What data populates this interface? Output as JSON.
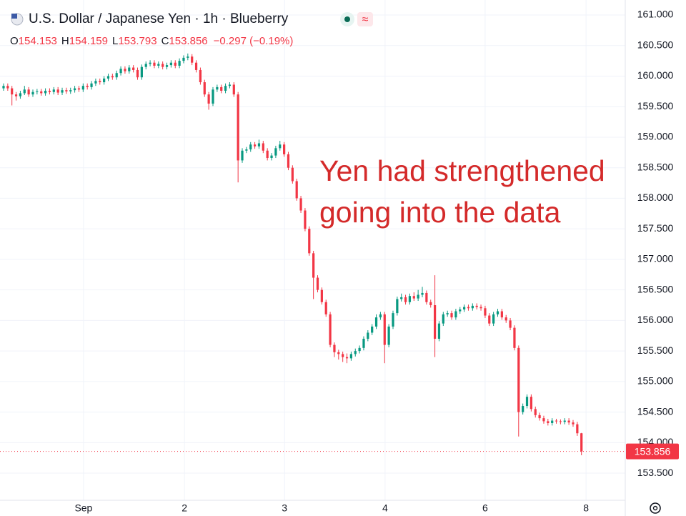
{
  "chart_data": {
    "type": "candlestick",
    "title": "U.S. Dollar / Japanese Yen · 1h · Blueberry",
    "ohlc_labels": [
      "O",
      "H",
      "L",
      "C"
    ],
    "change": "−0.297 (−0.19%)",
    "annotation": [
      "Yen had strengthened",
      "going into the data"
    ],
    "up_color": "#089981",
    "down_color": "#f23645",
    "annotation_color": "#d42a2a",
    "grid": true,
    "xlim": [
      -0.85,
      148.46
    ],
    "ylim": [
      153.056,
      161.246
    ],
    "xticks": [
      {
        "value": 19.1,
        "label": "Sep"
      },
      {
        "value": 43.2,
        "label": "2"
      },
      {
        "value": 67.1,
        "label": "3"
      },
      {
        "value": 91.1,
        "label": "4"
      },
      {
        "value": 115.0,
        "label": "6"
      },
      {
        "value": 139.1,
        "label": "8"
      }
    ],
    "yticks": [
      {
        "value": 161,
        "label": "161.000"
      },
      {
        "value": 160.5,
        "label": "160.500"
      },
      {
        "value": 160,
        "label": "160.000"
      },
      {
        "value": 159.5,
        "label": "159.500"
      },
      {
        "value": 159,
        "label": "159.000"
      },
      {
        "value": 158.5,
        "label": "158.500"
      },
      {
        "value": 158,
        "label": "158.000"
      },
      {
        "value": 157.5,
        "label": "157.500"
      },
      {
        "value": 157,
        "label": "157.000"
      },
      {
        "value": 156.5,
        "label": "156.500"
      },
      {
        "value": 156,
        "label": "156.000"
      },
      {
        "value": 155.5,
        "label": "155.500"
      },
      {
        "value": 155,
        "label": "155.000"
      },
      {
        "value": 154.5,
        "label": "154.500"
      },
      {
        "value": 154,
        "label": "154.000"
      },
      {
        "value": 153.5,
        "label": "153.500"
      }
    ],
    "x": [
      0,
      1,
      2,
      3,
      4,
      5,
      6,
      7,
      8,
      9,
      10,
      11,
      12,
      13,
      14,
      15,
      16,
      17,
      18,
      19,
      20,
      21,
      22,
      23,
      24,
      25,
      26,
      27,
      28,
      29,
      30,
      31,
      32,
      33,
      34,
      35,
      36,
      37,
      38,
      39,
      40,
      41,
      42,
      43,
      44,
      45,
      46,
      47,
      48,
      49,
      50,
      51,
      52,
      53,
      54,
      55,
      56,
      57,
      58,
      59,
      60,
      61,
      62,
      63,
      64,
      65,
      66,
      67,
      68,
      69,
      70,
      71,
      72,
      73,
      74,
      75,
      76,
      77,
      78,
      79,
      80,
      81,
      82,
      83,
      84,
      85,
      86,
      87,
      88,
      89,
      90,
      91,
      92,
      93,
      94,
      95,
      96,
      97,
      98,
      99,
      100,
      101,
      102,
      103,
      104,
      105,
      106,
      107,
      108,
      109,
      110,
      111,
      112,
      113,
      114,
      115,
      116,
      117,
      118,
      119,
      120,
      121,
      122,
      123,
      124,
      125,
      126,
      127,
      128,
      129,
      130,
      131,
      132,
      133,
      134,
      135,
      136,
      137,
      138
    ],
    "open": [
      159.8,
      159.84,
      159.8,
      159.7,
      159.67,
      159.72,
      159.78,
      159.7,
      159.74,
      159.75,
      159.72,
      159.76,
      159.74,
      159.78,
      159.73,
      159.77,
      159.75,
      159.77,
      159.8,
      159.78,
      159.84,
      159.82,
      159.88,
      159.92,
      159.9,
      159.96,
      160.0,
      159.98,
      160.05,
      160.12,
      160.08,
      160.14,
      160.1,
      159.98,
      160.15,
      160.2,
      160.22,
      160.17,
      160.2,
      160.15,
      160.18,
      160.22,
      160.17,
      160.25,
      160.3,
      160.32,
      160.22,
      160.1,
      159.9,
      159.7,
      159.55,
      159.78,
      159.82,
      159.76,
      159.84,
      159.86,
      159.7,
      158.62,
      158.78,
      158.8,
      158.88,
      158.85,
      158.9,
      158.78,
      158.66,
      158.7,
      158.82,
      158.88,
      158.72,
      158.5,
      158.28,
      158.0,
      157.8,
      157.5,
      157.1,
      156.7,
      156.5,
      156.3,
      156.1,
      155.6,
      155.48,
      155.45,
      155.4,
      155.38,
      155.45,
      155.5,
      155.55,
      155.7,
      155.8,
      155.9,
      156.05,
      156.1,
      155.6,
      155.9,
      156.12,
      156.35,
      156.38,
      156.3,
      156.4,
      156.36,
      156.42,
      156.45,
      156.3,
      156.25,
      155.7,
      155.95,
      156.1,
      156.12,
      156.05,
      156.15,
      156.18,
      156.22,
      156.2,
      156.24,
      156.22,
      156.2,
      156.08,
      155.95,
      156.1,
      156.15,
      156.05,
      156.0,
      155.88,
      155.55,
      154.5,
      154.6,
      154.75,
      154.55,
      154.45,
      154.4,
      154.35,
      154.32,
      154.36,
      154.35,
      154.34,
      154.36,
      154.33,
      154.3,
      154.153
    ],
    "high": [
      159.88,
      159.88,
      159.84,
      159.74,
      159.76,
      159.84,
      159.82,
      159.78,
      159.79,
      159.79,
      159.8,
      159.8,
      159.82,
      159.82,
      159.81,
      159.81,
      159.81,
      159.84,
      159.84,
      159.88,
      159.88,
      159.92,
      159.96,
      159.96,
      160.0,
      160.04,
      160.04,
      160.09,
      160.16,
      160.16,
      160.18,
      160.18,
      160.14,
      160.19,
      160.24,
      160.26,
      160.26,
      160.24,
      160.24,
      160.22,
      160.26,
      160.26,
      160.29,
      160.34,
      160.37,
      160.36,
      160.26,
      160.14,
      159.94,
      159.74,
      159.82,
      159.86,
      159.86,
      159.88,
      159.9,
      159.9,
      159.74,
      158.82,
      158.84,
      158.92,
      158.92,
      158.96,
      158.94,
      158.82,
      158.74,
      158.86,
      158.94,
      158.92,
      158.76,
      158.54,
      158.32,
      158.04,
      157.84,
      157.54,
      157.14,
      156.74,
      156.54,
      156.34,
      156.14,
      155.64,
      155.52,
      155.49,
      155.46,
      155.49,
      155.54,
      155.59,
      155.74,
      155.84,
      155.94,
      156.1,
      156.14,
      156.14,
      155.94,
      156.16,
      156.39,
      156.44,
      156.42,
      156.44,
      156.46,
      156.5,
      156.55,
      156.49,
      156.34,
      156.74,
      155.99,
      156.14,
      156.16,
      156.16,
      156.19,
      156.22,
      156.26,
      156.26,
      156.28,
      156.28,
      156.26,
      156.24,
      156.12,
      156.14,
      156.19,
      156.19,
      156.09,
      156.04,
      155.92,
      155.59,
      154.64,
      154.79,
      154.79,
      154.59,
      154.49,
      154.44,
      154.39,
      154.4,
      154.39,
      154.38,
      154.4,
      154.4,
      154.37,
      154.34,
      154.159
    ],
    "low": [
      159.76,
      159.76,
      159.52,
      159.6,
      159.63,
      159.69,
      159.66,
      159.66,
      159.7,
      159.68,
      159.68,
      159.7,
      159.7,
      159.69,
      159.69,
      159.71,
      159.71,
      159.73,
      159.74,
      159.74,
      159.78,
      159.78,
      159.84,
      159.86,
      159.86,
      159.92,
      159.94,
      159.94,
      160.01,
      160.04,
      160.04,
      160.06,
      159.94,
      159.94,
      160.11,
      160.16,
      160.13,
      160.13,
      160.11,
      160.11,
      160.14,
      160.13,
      160.13,
      160.21,
      160.26,
      160.18,
      160.06,
      159.86,
      159.66,
      159.45,
      159.51,
      159.74,
      159.72,
      159.72,
      159.8,
      159.66,
      158.26,
      158.58,
      158.74,
      158.76,
      158.81,
      158.81,
      158.74,
      158.62,
      158.62,
      158.66,
      158.78,
      158.68,
      158.46,
      158.24,
      157.96,
      157.76,
      157.46,
      157.06,
      156.35,
      156.46,
      156.26,
      156.06,
      155.56,
      155.4,
      155.36,
      155.32,
      155.3,
      155.34,
      155.41,
      155.46,
      155.51,
      155.66,
      155.76,
      155.86,
      156.01,
      155.3,
      155.56,
      155.86,
      156.08,
      156.31,
      156.26,
      156.26,
      156.32,
      156.32,
      156.38,
      156.26,
      156.21,
      155.4,
      155.66,
      155.91,
      156.06,
      156.01,
      156.01,
      156.11,
      156.14,
      156.16,
      156.16,
      156.18,
      156.16,
      156.04,
      155.91,
      155.91,
      156.06,
      156.01,
      155.96,
      155.84,
      155.51,
      154.1,
      154.46,
      154.56,
      154.51,
      154.41,
      154.36,
      154.31,
      154.28,
      154.28,
      154.31,
      154.3,
      154.3,
      154.29,
      154.26,
      154.11,
      153.793
    ],
    "close": [
      159.84,
      159.8,
      159.7,
      159.67,
      159.72,
      159.78,
      159.7,
      159.74,
      159.75,
      159.72,
      159.76,
      159.74,
      159.78,
      159.73,
      159.77,
      159.75,
      159.77,
      159.8,
      159.78,
      159.84,
      159.82,
      159.88,
      159.92,
      159.9,
      159.96,
      160.0,
      159.98,
      160.05,
      160.12,
      160.08,
      160.14,
      160.1,
      159.98,
      160.15,
      160.2,
      160.22,
      160.17,
      160.2,
      160.15,
      160.18,
      160.22,
      160.17,
      160.25,
      160.3,
      160.32,
      160.22,
      160.1,
      159.9,
      159.7,
      159.55,
      159.78,
      159.82,
      159.76,
      159.84,
      159.86,
      159.7,
      158.62,
      158.78,
      158.8,
      158.88,
      158.85,
      158.9,
      158.78,
      158.66,
      158.7,
      158.82,
      158.88,
      158.72,
      158.5,
      158.28,
      158.0,
      157.8,
      157.5,
      157.1,
      156.7,
      156.5,
      156.3,
      156.1,
      155.6,
      155.48,
      155.45,
      155.4,
      155.38,
      155.45,
      155.5,
      155.55,
      155.7,
      155.8,
      155.9,
      156.05,
      156.1,
      155.6,
      155.9,
      156.12,
      156.35,
      156.38,
      156.3,
      156.4,
      156.36,
      156.42,
      156.45,
      156.3,
      156.25,
      155.7,
      155.95,
      156.1,
      156.12,
      156.05,
      156.15,
      156.18,
      156.22,
      156.2,
      156.24,
      156.22,
      156.2,
      156.08,
      155.95,
      156.1,
      156.15,
      156.05,
      156.0,
      155.88,
      155.55,
      154.5,
      154.6,
      154.75,
      154.55,
      154.45,
      154.4,
      154.35,
      154.32,
      154.36,
      154.35,
      154.34,
      154.36,
      154.33,
      154.3,
      154.153,
      153.856
    ]
  }
}
